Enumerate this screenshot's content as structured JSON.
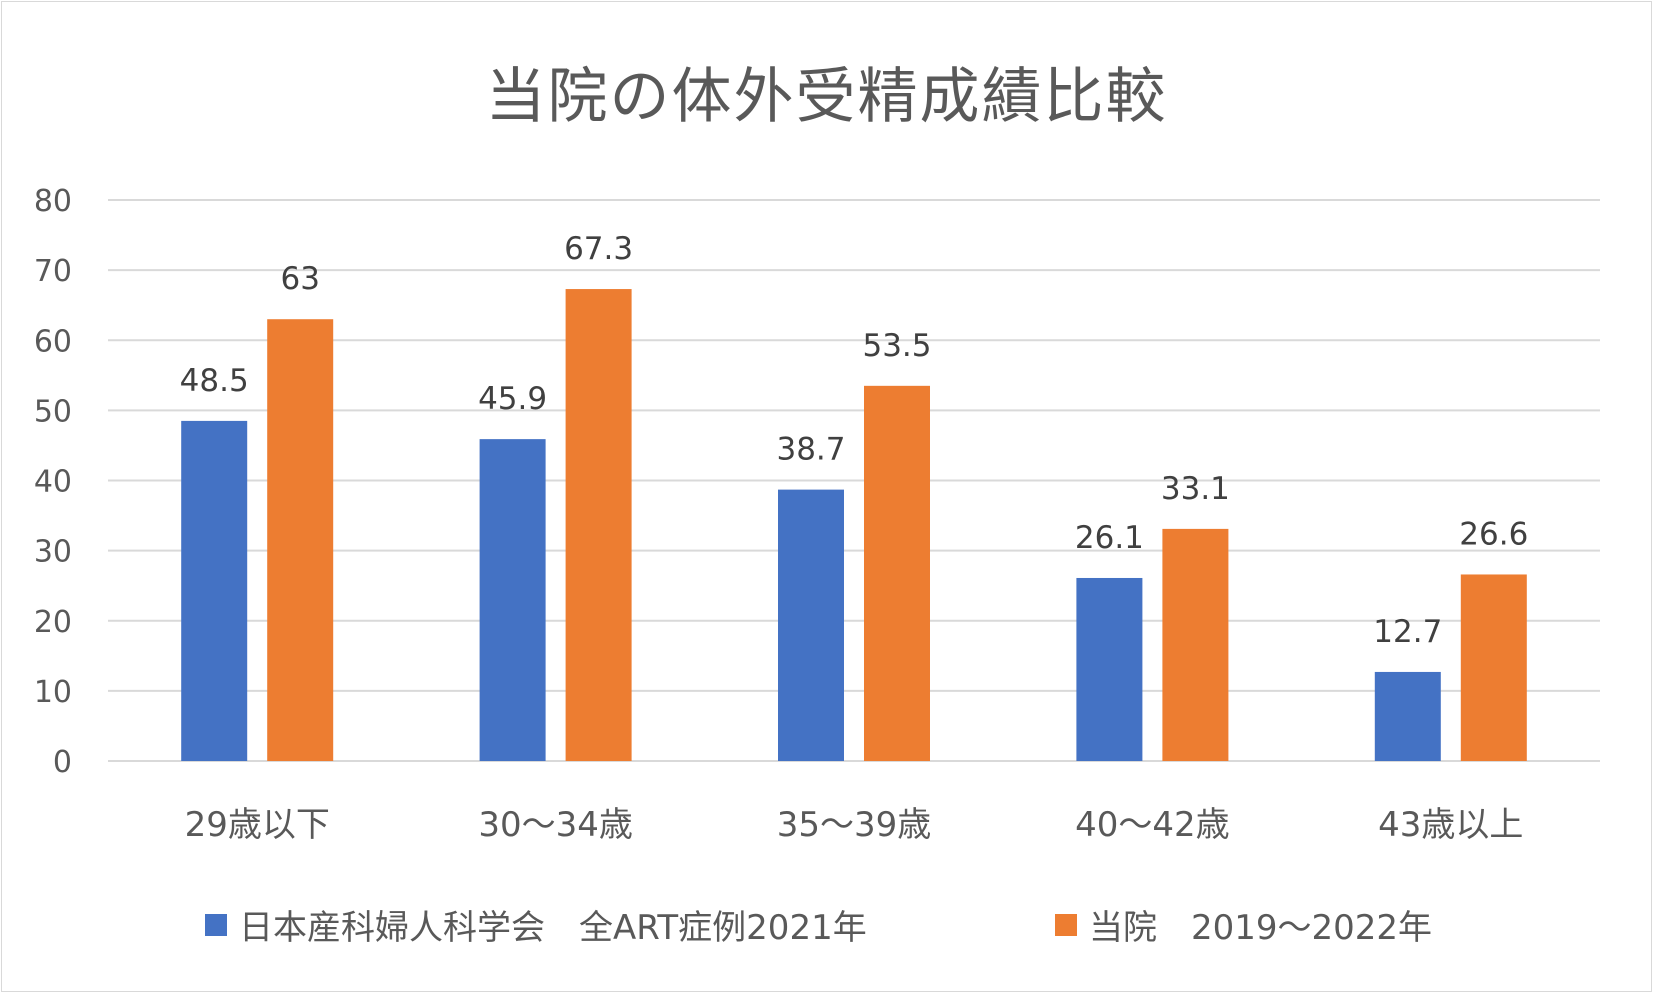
{
  "chart_data": {
    "type": "bar",
    "title": "当院の体外受精成績比較",
    "categories": [
      "29歳以下",
      "30～34歳",
      "35～39歳",
      "40～42歳",
      "43歳以上"
    ],
    "series": [
      {
        "name": "日本産科婦人科学会　全ART症例2021年",
        "color": "#4472c4",
        "values": [
          48.5,
          45.9,
          38.7,
          26.1,
          12.7
        ]
      },
      {
        "name": "当院　2019～2022年",
        "color": "#ed7d31",
        "values": [
          63,
          67.3,
          53.5,
          33.1,
          26.6
        ]
      }
    ],
    "ylim": [
      0,
      80
    ],
    "yticks": [
      0,
      10,
      20,
      30,
      40,
      50,
      60,
      70,
      80
    ],
    "grid": true,
    "legend_position": "bottom",
    "xlabel": "",
    "ylabel": ""
  }
}
